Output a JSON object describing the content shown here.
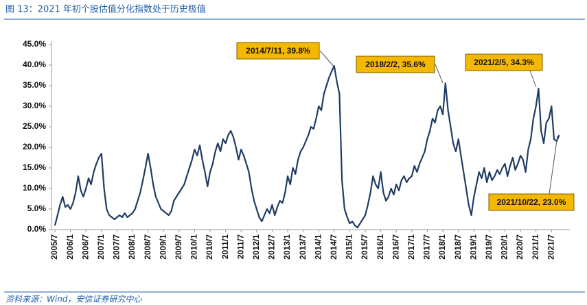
{
  "chart_data": {
    "type": "line",
    "title": "图 13：2021 年初个股估值分化指数处于历史极值",
    "source": "资料来源：Wind，安信证券研究中心",
    "categories": [
      "2005/7",
      null,
      null,
      null,
      null,
      null,
      "2006/1",
      null,
      null,
      null,
      null,
      null,
      "2006/7",
      null,
      null,
      null,
      null,
      null,
      "2007/1",
      null,
      null,
      null,
      null,
      null,
      "2007/7",
      null,
      null,
      null,
      null,
      null,
      "2008/1",
      null,
      null,
      null,
      null,
      null,
      "2008/7",
      null,
      null,
      null,
      null,
      null,
      "2009/1",
      null,
      null,
      null,
      null,
      null,
      "2009/7",
      null,
      null,
      null,
      null,
      null,
      "2010/1",
      null,
      null,
      null,
      null,
      null,
      "2010/7",
      null,
      null,
      null,
      null,
      null,
      "2011/1",
      null,
      null,
      null,
      null,
      null,
      "2011/7",
      null,
      null,
      null,
      null,
      null,
      "2012/1",
      null,
      null,
      null,
      null,
      null,
      "2012/7",
      null,
      null,
      null,
      null,
      null,
      "2013/1",
      null,
      null,
      null,
      null,
      null,
      "2013/7",
      null,
      null,
      null,
      null,
      null,
      "2014/1",
      null,
      null,
      null,
      null,
      null,
      "2014/7",
      null,
      null,
      null,
      null,
      null,
      "2015/1",
      null,
      null,
      null,
      null,
      null,
      "2015/7",
      null,
      null,
      null,
      null,
      null,
      "2016/1",
      null,
      null,
      null,
      null,
      null,
      "2016/7",
      null,
      null,
      null,
      null,
      null,
      "2017/1",
      null,
      null,
      null,
      null,
      null,
      "2017/7",
      null,
      null,
      null,
      null,
      null,
      "2018/1",
      null,
      null,
      null,
      null,
      null,
      "2018/7",
      null,
      null,
      null,
      null,
      null,
      "2019/1",
      null,
      null,
      null,
      null,
      null,
      "2019/7",
      null,
      null,
      null,
      null,
      null,
      "2020/1",
      null,
      null,
      null,
      null,
      null,
      "2020/7",
      null,
      null,
      null,
      null,
      null,
      "2021/1",
      null,
      null,
      null,
      null,
      null,
      "2021/7",
      null,
      null,
      null
    ],
    "values": [
      1.0,
      3.5,
      6.0,
      8.0,
      5.5,
      6.0,
      5.0,
      6.5,
      9.0,
      13.0,
      9.5,
      8.0,
      10.0,
      12.5,
      11.0,
      14.0,
      16.0,
      17.5,
      18.5,
      10.0,
      5.0,
      3.5,
      3.0,
      2.5,
      3.0,
      3.5,
      3.0,
      4.0,
      3.0,
      3.5,
      4.0,
      5.0,
      7.0,
      9.0,
      12.0,
      15.0,
      18.5,
      15.0,
      11.0,
      8.0,
      6.5,
      5.0,
      4.5,
      4.0,
      3.5,
      4.5,
      7.0,
      8.0,
      9.0,
      10.0,
      11.0,
      13.0,
      15.0,
      17.0,
      19.5,
      18.0,
      20.5,
      17.0,
      14.0,
      10.5,
      14.0,
      16.0,
      19.0,
      21.0,
      19.0,
      22.0,
      21.0,
      23.0,
      24.0,
      22.5,
      20.0,
      17.0,
      19.5,
      18.0,
      16.0,
      14.0,
      10.0,
      7.0,
      5.0,
      3.0,
      2.0,
      3.5,
      5.0,
      4.0,
      6.0,
      3.5,
      5.5,
      7.0,
      6.5,
      9.0,
      13.0,
      11.0,
      15.0,
      13.5,
      17.0,
      19.0,
      20.0,
      21.5,
      23.0,
      25.0,
      24.5,
      27.0,
      30.0,
      29.0,
      33.0,
      35.0,
      37.0,
      38.5,
      39.8,
      36.0,
      33.0,
      12.0,
      5.0,
      3.0,
      1.5,
      2.0,
      1.0,
      0.5,
      1.5,
      2.5,
      3.5,
      6.0,
      9.0,
      13.0,
      11.0,
      10.0,
      14.0,
      9.0,
      7.0,
      8.0,
      10.0,
      8.5,
      11.0,
      9.5,
      12.0,
      13.0,
      11.5,
      12.5,
      13.0,
      15.5,
      14.0,
      16.0,
      17.5,
      19.0,
      22.0,
      24.0,
      27.0,
      26.0,
      29.0,
      30.0,
      28.0,
      35.6,
      29.0,
      25.0,
      21.0,
      19.0,
      22.0,
      18.0,
      14.0,
      10.0,
      6.0,
      3.5,
      8.0,
      11.0,
      14.0,
      12.5,
      15.0,
      11.5,
      14.0,
      12.0,
      13.0,
      14.5,
      13.5,
      15.0,
      16.0,
      13.0,
      15.5,
      17.5,
      14.5,
      16.0,
      18.0,
      17.0,
      14.0,
      19.5,
      22.0,
      27.0,
      30.0,
      34.3,
      24.0,
      21.0,
      26.0,
      27.0,
      30.0,
      22.0,
      21.5,
      23.0
    ],
    "color": "#1f3c64",
    "ylim": [
      0,
      45
    ],
    "yticks": [
      {
        "value": 0,
        "label": "0.0%"
      },
      {
        "value": 5,
        "label": "5.0%"
      },
      {
        "value": 10,
        "label": "10.0%"
      },
      {
        "value": 15,
        "label": "15.0%"
      },
      {
        "value": 20,
        "label": "20.0%"
      },
      {
        "value": 25,
        "label": "25.0%"
      },
      {
        "value": 30,
        "label": "30.0%"
      },
      {
        "value": 35,
        "label": "35.0%"
      },
      {
        "value": 40,
        "label": "40.0%"
      },
      {
        "value": 45,
        "label": "45.0%"
      }
    ],
    "annotations": [
      "2014/7/11, 39.8%",
      "2018/2/2, 35.6%",
      "2021/2/5, 34.3%",
      "2021/10/22, 23.0%"
    ]
  }
}
